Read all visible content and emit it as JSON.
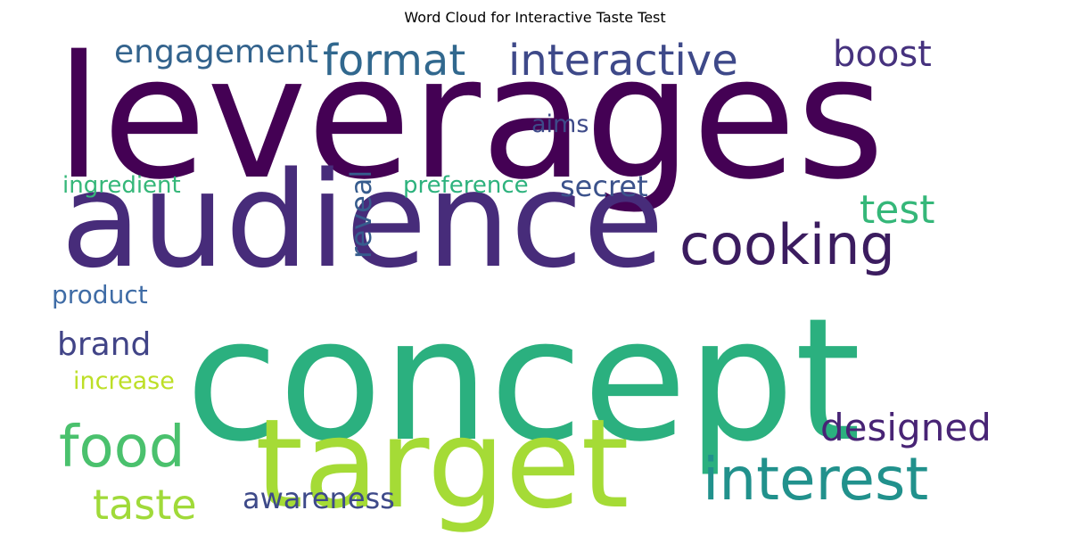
{
  "chart_data": {
    "type": "wordcloud",
    "title": "Word Cloud for Interactive Taste Test",
    "words": [
      {
        "text": "leverages",
        "weight": 1.0,
        "color": "#440154"
      },
      {
        "text": "concept",
        "weight": 0.98,
        "color": "#2bb07f"
      },
      {
        "text": "audience",
        "weight": 0.78,
        "color": "#472c7a"
      },
      {
        "text": "target",
        "weight": 0.72,
        "color": "#a5db36"
      },
      {
        "text": "interest",
        "weight": 0.34,
        "color": "#21918c"
      },
      {
        "text": "food",
        "weight": 0.33,
        "color": "#4ac16d"
      },
      {
        "text": "cooking",
        "weight": 0.32,
        "color": "#3b1c5f"
      },
      {
        "text": "taste",
        "weight": 0.24,
        "color": "#a0da39"
      },
      {
        "text": "format",
        "weight": 0.24,
        "color": "#31688e"
      },
      {
        "text": "interactive",
        "weight": 0.23,
        "color": "#3e4989"
      },
      {
        "text": "designed",
        "weight": 0.19,
        "color": "#482475"
      },
      {
        "text": "test",
        "weight": 0.19,
        "color": "#35b779"
      },
      {
        "text": "boost",
        "weight": 0.18,
        "color": "#46327e"
      },
      {
        "text": "engagement",
        "weight": 0.17,
        "color": "#33638d"
      },
      {
        "text": "brand",
        "weight": 0.15,
        "color": "#414487"
      },
      {
        "text": "reveal",
        "weight": 0.14,
        "color": "#365c8d"
      },
      {
        "text": "secret",
        "weight": 0.14,
        "color": "#3b528b"
      },
      {
        "text": "awareness",
        "weight": 0.14,
        "color": "#3e4a89"
      },
      {
        "text": "product",
        "weight": 0.12,
        "color": "#3f6ca6"
      },
      {
        "text": "increase",
        "weight": 0.11,
        "color": "#bddf26"
      },
      {
        "text": "aims",
        "weight": 0.11,
        "color": "#3e4a89"
      },
      {
        "text": "preference",
        "weight": 0.11,
        "color": "#2db27d"
      },
      {
        "text": "ingredient",
        "weight": 0.11,
        "color": "#35b779"
      }
    ]
  }
}
